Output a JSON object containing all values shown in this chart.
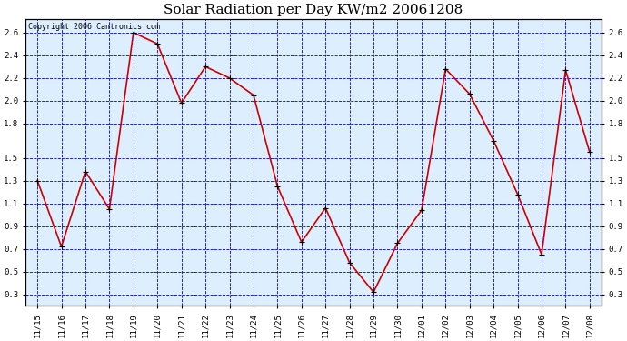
{
  "title": "Solar Radiation per Day KW/m2 20061208",
  "copyright_text": "Copyright 2006 Cantronics.com",
  "dates": [
    "11/15",
    "11/16",
    "11/17",
    "11/18",
    "11/19",
    "11/20",
    "11/21",
    "11/22",
    "11/23",
    "11/24",
    "11/25",
    "11/26",
    "11/27",
    "11/28",
    "11/29",
    "11/30",
    "12/01",
    "12/02",
    "12/03",
    "12/04",
    "12/05",
    "12/06",
    "12/07",
    "12/08"
  ],
  "values": [
    1.3,
    0.72,
    1.38,
    1.05,
    2.6,
    2.5,
    1.98,
    2.3,
    2.2,
    2.05,
    1.25,
    0.76,
    1.06,
    0.58,
    0.32,
    0.75,
    1.04,
    2.28,
    2.06,
    1.65,
    1.18,
    0.65,
    2.27,
    1.55
  ],
  "line_color": "#cc0000",
  "marker_color": "#000000",
  "grid_color": "#0000bb",
  "plot_bg_color": "#ddeeff",
  "fig_bg_color": "#ffffff",
  "ylim": [
    0.2,
    2.72
  ],
  "yticks": [
    0.3,
    0.5,
    0.7,
    0.9,
    1.1,
    1.3,
    1.5,
    1.8,
    2.0,
    2.2,
    2.4,
    2.6
  ],
  "title_fontsize": 11,
  "tick_fontsize": 6.5,
  "copyright_fontsize": 6
}
